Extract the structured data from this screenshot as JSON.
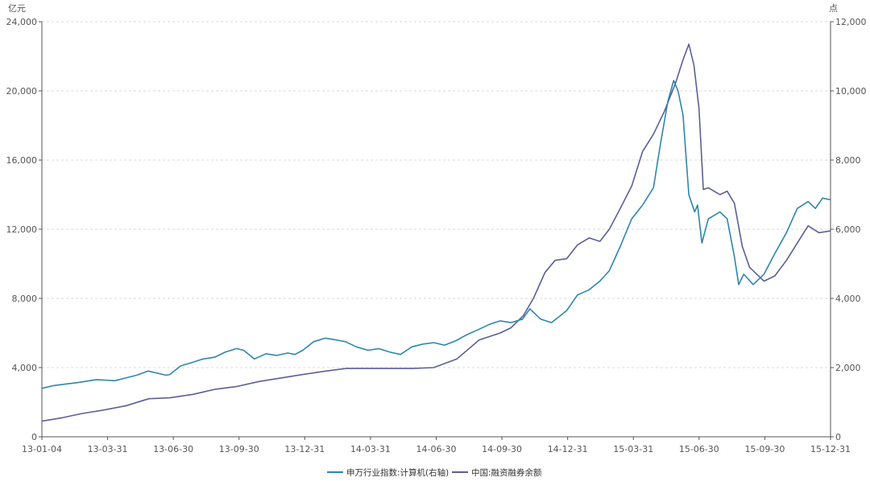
{
  "chart_data": {
    "type": "line",
    "left_unit": "亿元",
    "right_unit": "点",
    "ylim_left": [
      0,
      24000
    ],
    "ylim_right": [
      0,
      12000
    ],
    "y_ticks_left": [
      "0",
      "4,000",
      "8,000",
      "12,000",
      "16,000",
      "20,000",
      "24,000"
    ],
    "y_ticks_right": [
      "0",
      "2,000",
      "4,000",
      "6,000",
      "8,000",
      "10,000",
      "12,000"
    ],
    "x_ticks": [
      "13-01-04",
      "13-03-31",
      "13-06-30",
      "13-09-30",
      "13-12-31",
      "14-03-31",
      "14-06-30",
      "14-09-30",
      "14-12-31",
      "15-03-31",
      "15-06-30",
      "15-09-30",
      "15-12-31"
    ],
    "grid": true,
    "legend_position": "bottom-center",
    "series": [
      {
        "name": "申万行业指数:计算机(右轴)",
        "axis": "right",
        "color": "#2e86ab",
        "points": [
          [
            "2013-01-04",
            1400
          ],
          [
            "2013-01-20",
            1480
          ],
          [
            "2013-02-05",
            1520
          ],
          [
            "2013-02-20",
            1560
          ],
          [
            "2013-03-05",
            1600
          ],
          [
            "2013-03-20",
            1650
          ],
          [
            "2013-03-31",
            1640
          ],
          [
            "2013-04-15",
            1620
          ],
          [
            "2013-04-30",
            1700
          ],
          [
            "2013-05-15",
            1780
          ],
          [
            "2013-05-31",
            1900
          ],
          [
            "2013-06-10",
            1850
          ],
          [
            "2013-06-25",
            1780
          ],
          [
            "2013-06-30",
            1800
          ],
          [
            "2013-07-15",
            2050
          ],
          [
            "2013-07-31",
            2150
          ],
          [
            "2013-08-15",
            2250
          ],
          [
            "2013-08-31",
            2300
          ],
          [
            "2013-09-15",
            2450
          ],
          [
            "2013-09-30",
            2550
          ],
          [
            "2013-10-10",
            2500
          ],
          [
            "2013-10-25",
            2250
          ],
          [
            "2013-11-10",
            2400
          ],
          [
            "2013-11-25",
            2350
          ],
          [
            "2013-12-10",
            2420
          ],
          [
            "2013-12-20",
            2380
          ],
          [
            "2013-12-31",
            2500
          ],
          [
            "2014-01-15",
            2750
          ],
          [
            "2014-01-31",
            2850
          ],
          [
            "2014-02-15",
            2800
          ],
          [
            "2014-02-28",
            2750
          ],
          [
            "2014-03-15",
            2600
          ],
          [
            "2014-03-31",
            2500
          ],
          [
            "2014-04-15",
            2550
          ],
          [
            "2014-04-30",
            2450
          ],
          [
            "2014-05-15",
            2380
          ],
          [
            "2014-05-31",
            2600
          ],
          [
            "2014-06-15",
            2680
          ],
          [
            "2014-06-30",
            2720
          ],
          [
            "2014-07-15",
            2650
          ],
          [
            "2014-07-31",
            2780
          ],
          [
            "2014-08-15",
            2950
          ],
          [
            "2014-08-31",
            3100
          ],
          [
            "2014-09-15",
            3250
          ],
          [
            "2014-09-30",
            3350
          ],
          [
            "2014-10-15",
            3300
          ],
          [
            "2014-10-31",
            3400
          ],
          [
            "2014-11-10",
            3700
          ],
          [
            "2014-11-25",
            3400
          ],
          [
            "2014-12-10",
            3300
          ],
          [
            "2014-12-31",
            3650
          ],
          [
            "2015-01-15",
            4100
          ],
          [
            "2015-01-31",
            4250
          ],
          [
            "2015-02-15",
            4500
          ],
          [
            "2015-02-28",
            4800
          ],
          [
            "2015-03-15",
            5500
          ],
          [
            "2015-03-31",
            6300
          ],
          [
            "2015-04-15",
            6700
          ],
          [
            "2015-04-30",
            7200
          ],
          [
            "2015-05-10",
            8500
          ],
          [
            "2015-05-20",
            9700
          ],
          [
            "2015-05-28",
            10300
          ],
          [
            "2015-06-03",
            10000
          ],
          [
            "2015-06-10",
            9300
          ],
          [
            "2015-06-18",
            7000
          ],
          [
            "2015-06-26",
            6500
          ],
          [
            "2015-06-30",
            6700
          ],
          [
            "2015-07-06",
            5600
          ],
          [
            "2015-07-15",
            6300
          ],
          [
            "2015-07-31",
            6500
          ],
          [
            "2015-08-10",
            6300
          ],
          [
            "2015-08-20",
            5200
          ],
          [
            "2015-08-26",
            4400
          ],
          [
            "2015-09-02",
            4700
          ],
          [
            "2015-09-15",
            4400
          ],
          [
            "2015-09-30",
            4700
          ],
          [
            "2015-10-15",
            5300
          ],
          [
            "2015-10-31",
            5900
          ],
          [
            "2015-11-15",
            6600
          ],
          [
            "2015-11-30",
            6800
          ],
          [
            "2015-12-10",
            6600
          ],
          [
            "2015-12-20",
            6900
          ],
          [
            "2015-12-31",
            6850
          ]
        ]
      },
      {
        "name": "中国:融资融券余额",
        "axis": "left",
        "color": "#5b5f97",
        "points": [
          [
            "2013-01-04",
            900
          ],
          [
            "2013-02-01",
            1100
          ],
          [
            "2013-03-01",
            1350
          ],
          [
            "2013-03-31",
            1550
          ],
          [
            "2013-05-01",
            1800
          ],
          [
            "2013-06-01",
            2200
          ],
          [
            "2013-06-30",
            2250
          ],
          [
            "2013-08-01",
            2450
          ],
          [
            "2013-09-01",
            2750
          ],
          [
            "2013-09-30",
            2900
          ],
          [
            "2013-11-01",
            3200
          ],
          [
            "2013-12-01",
            3400
          ],
          [
            "2013-12-31",
            3600
          ],
          [
            "2014-02-01",
            3800
          ],
          [
            "2014-03-01",
            3950
          ],
          [
            "2014-03-31",
            3950
          ],
          [
            "2014-05-01",
            3950
          ],
          [
            "2014-06-01",
            3950
          ],
          [
            "2014-06-30",
            4000
          ],
          [
            "2014-08-01",
            4500
          ],
          [
            "2014-09-01",
            5600
          ],
          [
            "2014-09-30",
            6000
          ],
          [
            "2014-10-15",
            6300
          ],
          [
            "2014-11-01",
            7000
          ],
          [
            "2014-11-15",
            8000
          ],
          [
            "2014-12-01",
            9500
          ],
          [
            "2014-12-15",
            10200
          ],
          [
            "2014-12-31",
            10300
          ],
          [
            "2015-01-15",
            11100
          ],
          [
            "2015-01-31",
            11500
          ],
          [
            "2015-02-15",
            11300
          ],
          [
            "2015-02-28",
            12000
          ],
          [
            "2015-03-15",
            13200
          ],
          [
            "2015-03-31",
            14500
          ],
          [
            "2015-04-15",
            16500
          ],
          [
            "2015-04-30",
            17500
          ],
          [
            "2015-05-15",
            18800
          ],
          [
            "2015-05-31",
            20500
          ],
          [
            "2015-06-10",
            21800
          ],
          [
            "2015-06-18",
            22700
          ],
          [
            "2015-06-25",
            21500
          ],
          [
            "2015-07-02",
            19000
          ],
          [
            "2015-07-08",
            14300
          ],
          [
            "2015-07-15",
            14400
          ],
          [
            "2015-07-31",
            14000
          ],
          [
            "2015-08-10",
            14200
          ],
          [
            "2015-08-20",
            13500
          ],
          [
            "2015-08-31",
            11000
          ],
          [
            "2015-09-10",
            9800
          ],
          [
            "2015-09-20",
            9400
          ],
          [
            "2015-09-30",
            9000
          ],
          [
            "2015-10-15",
            9300
          ],
          [
            "2015-10-31",
            10200
          ],
          [
            "2015-11-15",
            11200
          ],
          [
            "2015-11-30",
            12200
          ],
          [
            "2015-12-15",
            11800
          ],
          [
            "2015-12-31",
            11900
          ]
        ]
      }
    ]
  }
}
